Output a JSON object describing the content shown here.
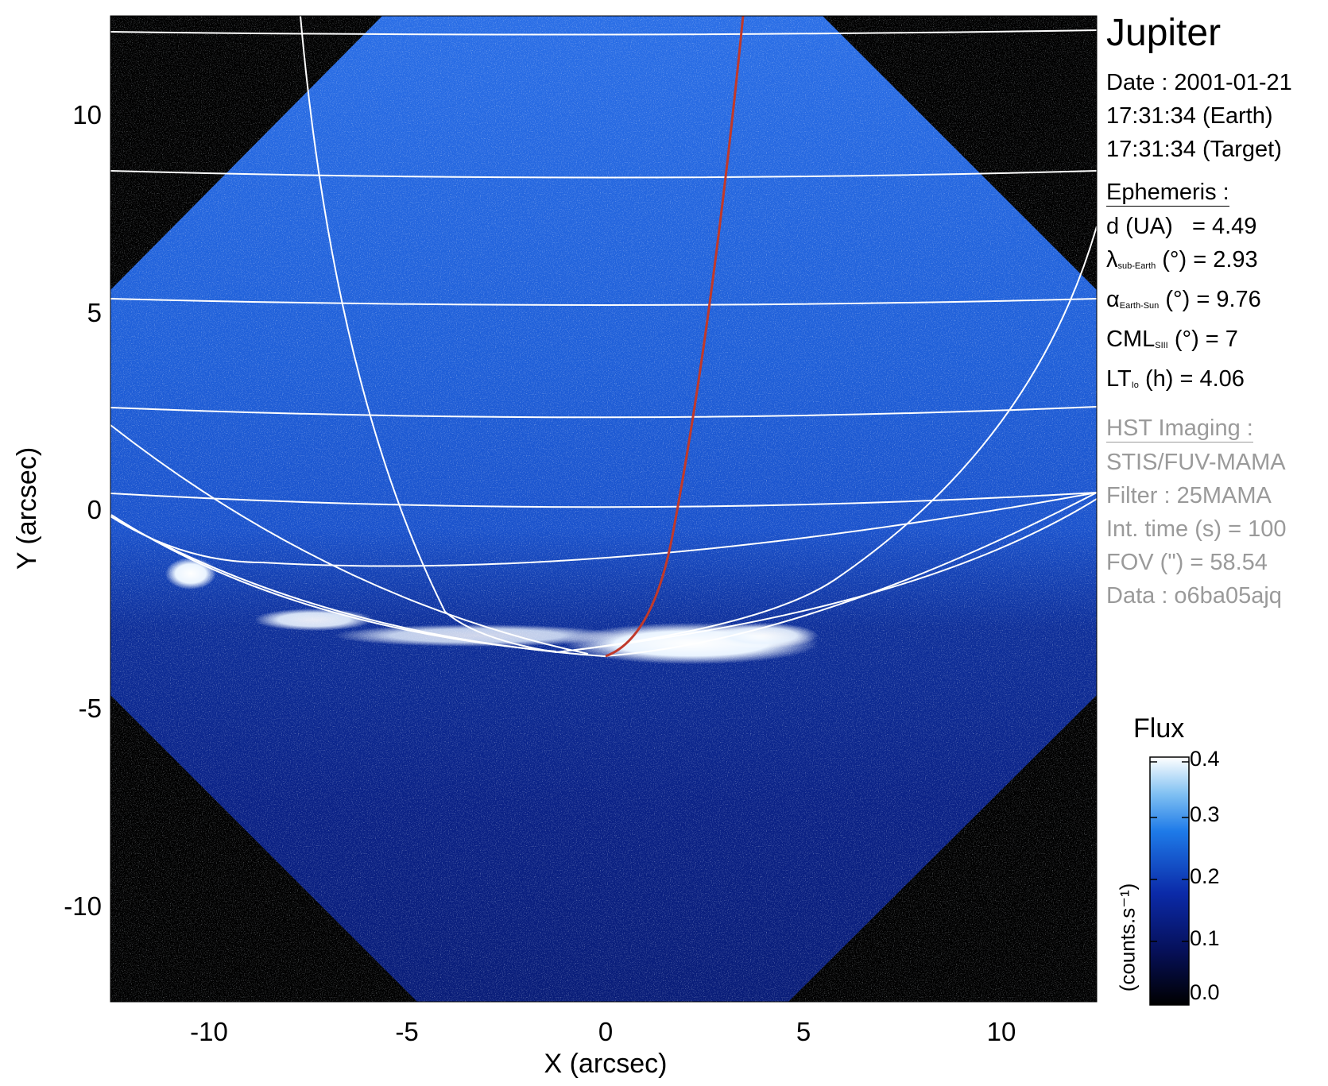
{
  "image": {
    "xlabel": "X (arcsec)",
    "ylabel": "Y (arcsec)",
    "xticks": [
      "-10",
      "-5",
      "0",
      "5",
      "10"
    ],
    "yticks": [
      "10",
      "5",
      "0",
      "-5",
      "-10"
    ],
    "colors": {
      "background": "#000000",
      "disk_blue": "#1c5ad6",
      "aurora": "#ffffff",
      "grid": "#ffffff",
      "footprint": "#c0392b"
    }
  },
  "info": {
    "planet": "Jupiter",
    "date": "Date : 2001-01-21",
    "time_earth": "17:31:34 (Earth)",
    "time_target": "17:31:34 (Target)",
    "ephemeris_title": "Ephemeris :",
    "d_label": "d (UA)",
    "d_value": "= 4.49",
    "lambda_symbol": "λ",
    "lambda_sub": "sub-Earth",
    "lambda_rest": "(°) = 2.93",
    "alpha_symbol": "α",
    "alpha_sub": "Earth-Sun",
    "alpha_rest": "(°) = 9.76",
    "cml_symbol": "CML",
    "cml_sub": "SIII",
    "cml_rest": "(°) = 7",
    "lt_symbol": "LT",
    "lt_sub": "Io",
    "lt_rest": "(h) = 4.06",
    "hst_title": "HST Imaging :",
    "instrument": "STIS/FUV-MAMA",
    "filter": "Filter : 25MAMA",
    "int_time": "Int. time (s) = 100",
    "fov": "FOV (\") = 58.54",
    "data": "Data : o6ba05ajq"
  },
  "colorbar": {
    "title": "Flux",
    "unit": "(counts.s⁻¹)",
    "ticks": [
      "0.4",
      "0.3",
      "0.2",
      "0.1",
      "0.0"
    ]
  }
}
